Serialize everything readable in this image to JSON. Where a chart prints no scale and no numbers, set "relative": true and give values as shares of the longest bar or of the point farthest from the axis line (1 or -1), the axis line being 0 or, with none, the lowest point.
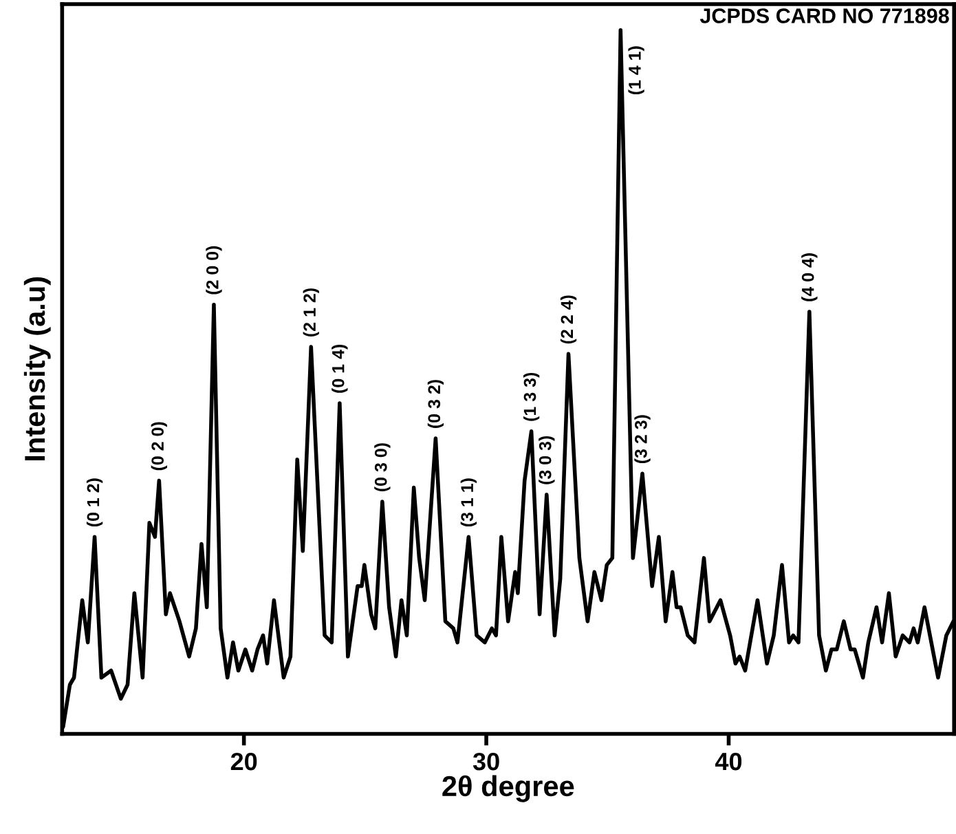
{
  "chart_data": {
    "type": "line",
    "relative": true,
    "xlabel": "2θ degree",
    "ylabel": "Intensity (a.u)",
    "xlim": [
      12.5,
      49.3
    ],
    "xticks": [
      20,
      30,
      40
    ],
    "tick_labels": "x",
    "grid": false,
    "marker": "none",
    "line_style": "solid",
    "series": [
      {
        "color": "#000000",
        "x": [
          12.54,
          12.82,
          12.99,
          13.33,
          13.56,
          13.84,
          14.12,
          14.52,
          14.92,
          15.2,
          15.48,
          15.82,
          16.1,
          16.33,
          16.5,
          16.78,
          16.95,
          17.34,
          17.74,
          18.02,
          18.25,
          18.47,
          18.76,
          19.04,
          19.32,
          19.55,
          19.77,
          20.06,
          20.34,
          20.56,
          20.79,
          20.96,
          21.24,
          21.64,
          21.92,
          22.2,
          22.43,
          22.77,
          23.33,
          23.62,
          23.95,
          24.29,
          24.69,
          24.86,
          24.97,
          25.25,
          25.42,
          25.71,
          25.99,
          26.27,
          26.5,
          26.72,
          27.01,
          27.23,
          27.46,
          27.91,
          28.31,
          28.64,
          28.81,
          29.27,
          29.6,
          29.94,
          30.23,
          30.4,
          30.62,
          30.9,
          31.19,
          31.3,
          31.58,
          31.86,
          32.2,
          32.49,
          32.82,
          33.05,
          33.39,
          33.84,
          34.18,
          34.46,
          34.75,
          34.97,
          35.2,
          35.54,
          36.05,
          36.44,
          36.84,
          37.12,
          37.4,
          37.68,
          37.85,
          38.02,
          38.31,
          38.59,
          38.98,
          39.21,
          39.66,
          40.06,
          40.28,
          40.45,
          40.68,
          41.19,
          41.58,
          41.86,
          42.2,
          42.49,
          42.66,
          42.88,
          43.33,
          43.73,
          44.01,
          44.24,
          44.46,
          44.75,
          45.03,
          45.2,
          45.54,
          45.76,
          46.1,
          46.33,
          46.61,
          46.89,
          47.18,
          47.46,
          47.63,
          47.8,
          48.08,
          48.36,
          48.64,
          48.98,
          49.27
        ],
        "values": [
          0.01,
          0.07,
          0.08,
          0.19,
          0.13,
          0.28,
          0.08,
          0.09,
          0.05,
          0.07,
          0.2,
          0.08,
          0.3,
          0.28,
          0.36,
          0.17,
          0.2,
          0.16,
          0.11,
          0.15,
          0.27,
          0.18,
          0.61,
          0.15,
          0.08,
          0.13,
          0.09,
          0.12,
          0.09,
          0.12,
          0.14,
          0.1,
          0.19,
          0.08,
          0.11,
          0.39,
          0.26,
          0.55,
          0.14,
          0.13,
          0.47,
          0.11,
          0.21,
          0.21,
          0.24,
          0.17,
          0.15,
          0.33,
          0.18,
          0.11,
          0.19,
          0.14,
          0.35,
          0.25,
          0.19,
          0.42,
          0.16,
          0.15,
          0.13,
          0.28,
          0.14,
          0.13,
          0.15,
          0.14,
          0.28,
          0.16,
          0.23,
          0.2,
          0.36,
          0.43,
          0.17,
          0.34,
          0.14,
          0.22,
          0.54,
          0.25,
          0.16,
          0.23,
          0.19,
          0.24,
          0.25,
          1.0,
          0.25,
          0.37,
          0.21,
          0.28,
          0.16,
          0.23,
          0.18,
          0.18,
          0.14,
          0.13,
          0.25,
          0.16,
          0.19,
          0.14,
          0.1,
          0.11,
          0.09,
          0.19,
          0.1,
          0.14,
          0.24,
          0.13,
          0.14,
          0.13,
          0.6,
          0.14,
          0.09,
          0.12,
          0.12,
          0.16,
          0.12,
          0.12,
          0.08,
          0.13,
          0.18,
          0.13,
          0.2,
          0.11,
          0.14,
          0.13,
          0.15,
          0.13,
          0.18,
          0.13,
          0.08,
          0.14,
          0.16
        ]
      }
    ],
    "annotations": [
      "JCPDS CARD NO 771898",
      {
        "text": "(0 1 2)",
        "x": 13.84,
        "y": 0.28
      },
      {
        "text": "(0 2 0)",
        "x": 16.5,
        "y": 0.36
      },
      {
        "text": "(2 0 0)",
        "x": 18.76,
        "y": 0.61
      },
      {
        "text": "(2 1 2)",
        "x": 22.77,
        "y": 0.55
      },
      {
        "text": "(0 1 4)",
        "x": 23.95,
        "y": 0.47
      },
      {
        "text": "(0 3 0)",
        "x": 25.71,
        "y": 0.33
      },
      {
        "text": "(0 3 2)",
        "x": 27.91,
        "y": 0.42
      },
      {
        "text": "(3 1 1)",
        "x": 29.27,
        "y": 0.28
      },
      {
        "text": "(1 3 3)",
        "x": 31.86,
        "y": 0.43
      },
      {
        "text": "(3 0 3)",
        "x": 32.49,
        "y": 0.34
      },
      {
        "text": "(2 2 4)",
        "x": 33.39,
        "y": 0.54
      },
      {
        "text": "(1 4 1)",
        "x": 35.54,
        "y": 1.0
      },
      {
        "text": "(3 2 3)",
        "x": 36.44,
        "y": 0.37
      },
      {
        "text": "(4 0 4)",
        "x": 43.33,
        "y": 0.6
      }
    ]
  }
}
